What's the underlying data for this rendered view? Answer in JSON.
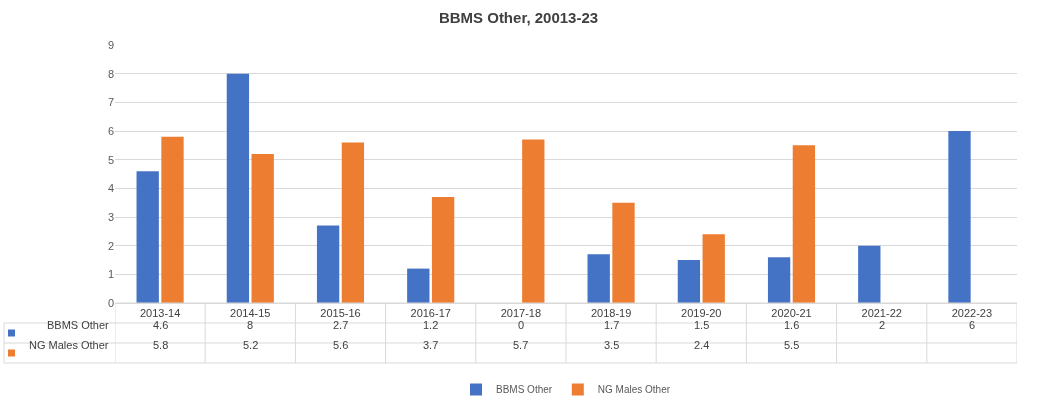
{
  "chart_data": {
    "type": "bar",
    "title": "BBMS Other, 20013-23",
    "categories": [
      "2013-14",
      "2014-15",
      "2015-16",
      "2016-17",
      "2017-18",
      "2018-19",
      "2019-20",
      "2020-21",
      "2021-22",
      "2022-23"
    ],
    "series": [
      {
        "name": "BBMS Other",
        "color": "#4472c4",
        "values": [
          4.6,
          8,
          2.7,
          1.2,
          0,
          1.7,
          1.5,
          1.6,
          2,
          6
        ]
      },
      {
        "name": "NG Males Other",
        "color": "#ed7d31",
        "values": [
          5.8,
          5.2,
          5.6,
          3.7,
          5.7,
          3.5,
          2.4,
          5.5,
          null,
          null
        ]
      }
    ],
    "ylim": [
      0,
      9
    ],
    "yticks": [
      0,
      1,
      2,
      3,
      4,
      5,
      6,
      7,
      8,
      9
    ],
    "grid": "y",
    "legend": "bottom",
    "data_labels": true
  }
}
